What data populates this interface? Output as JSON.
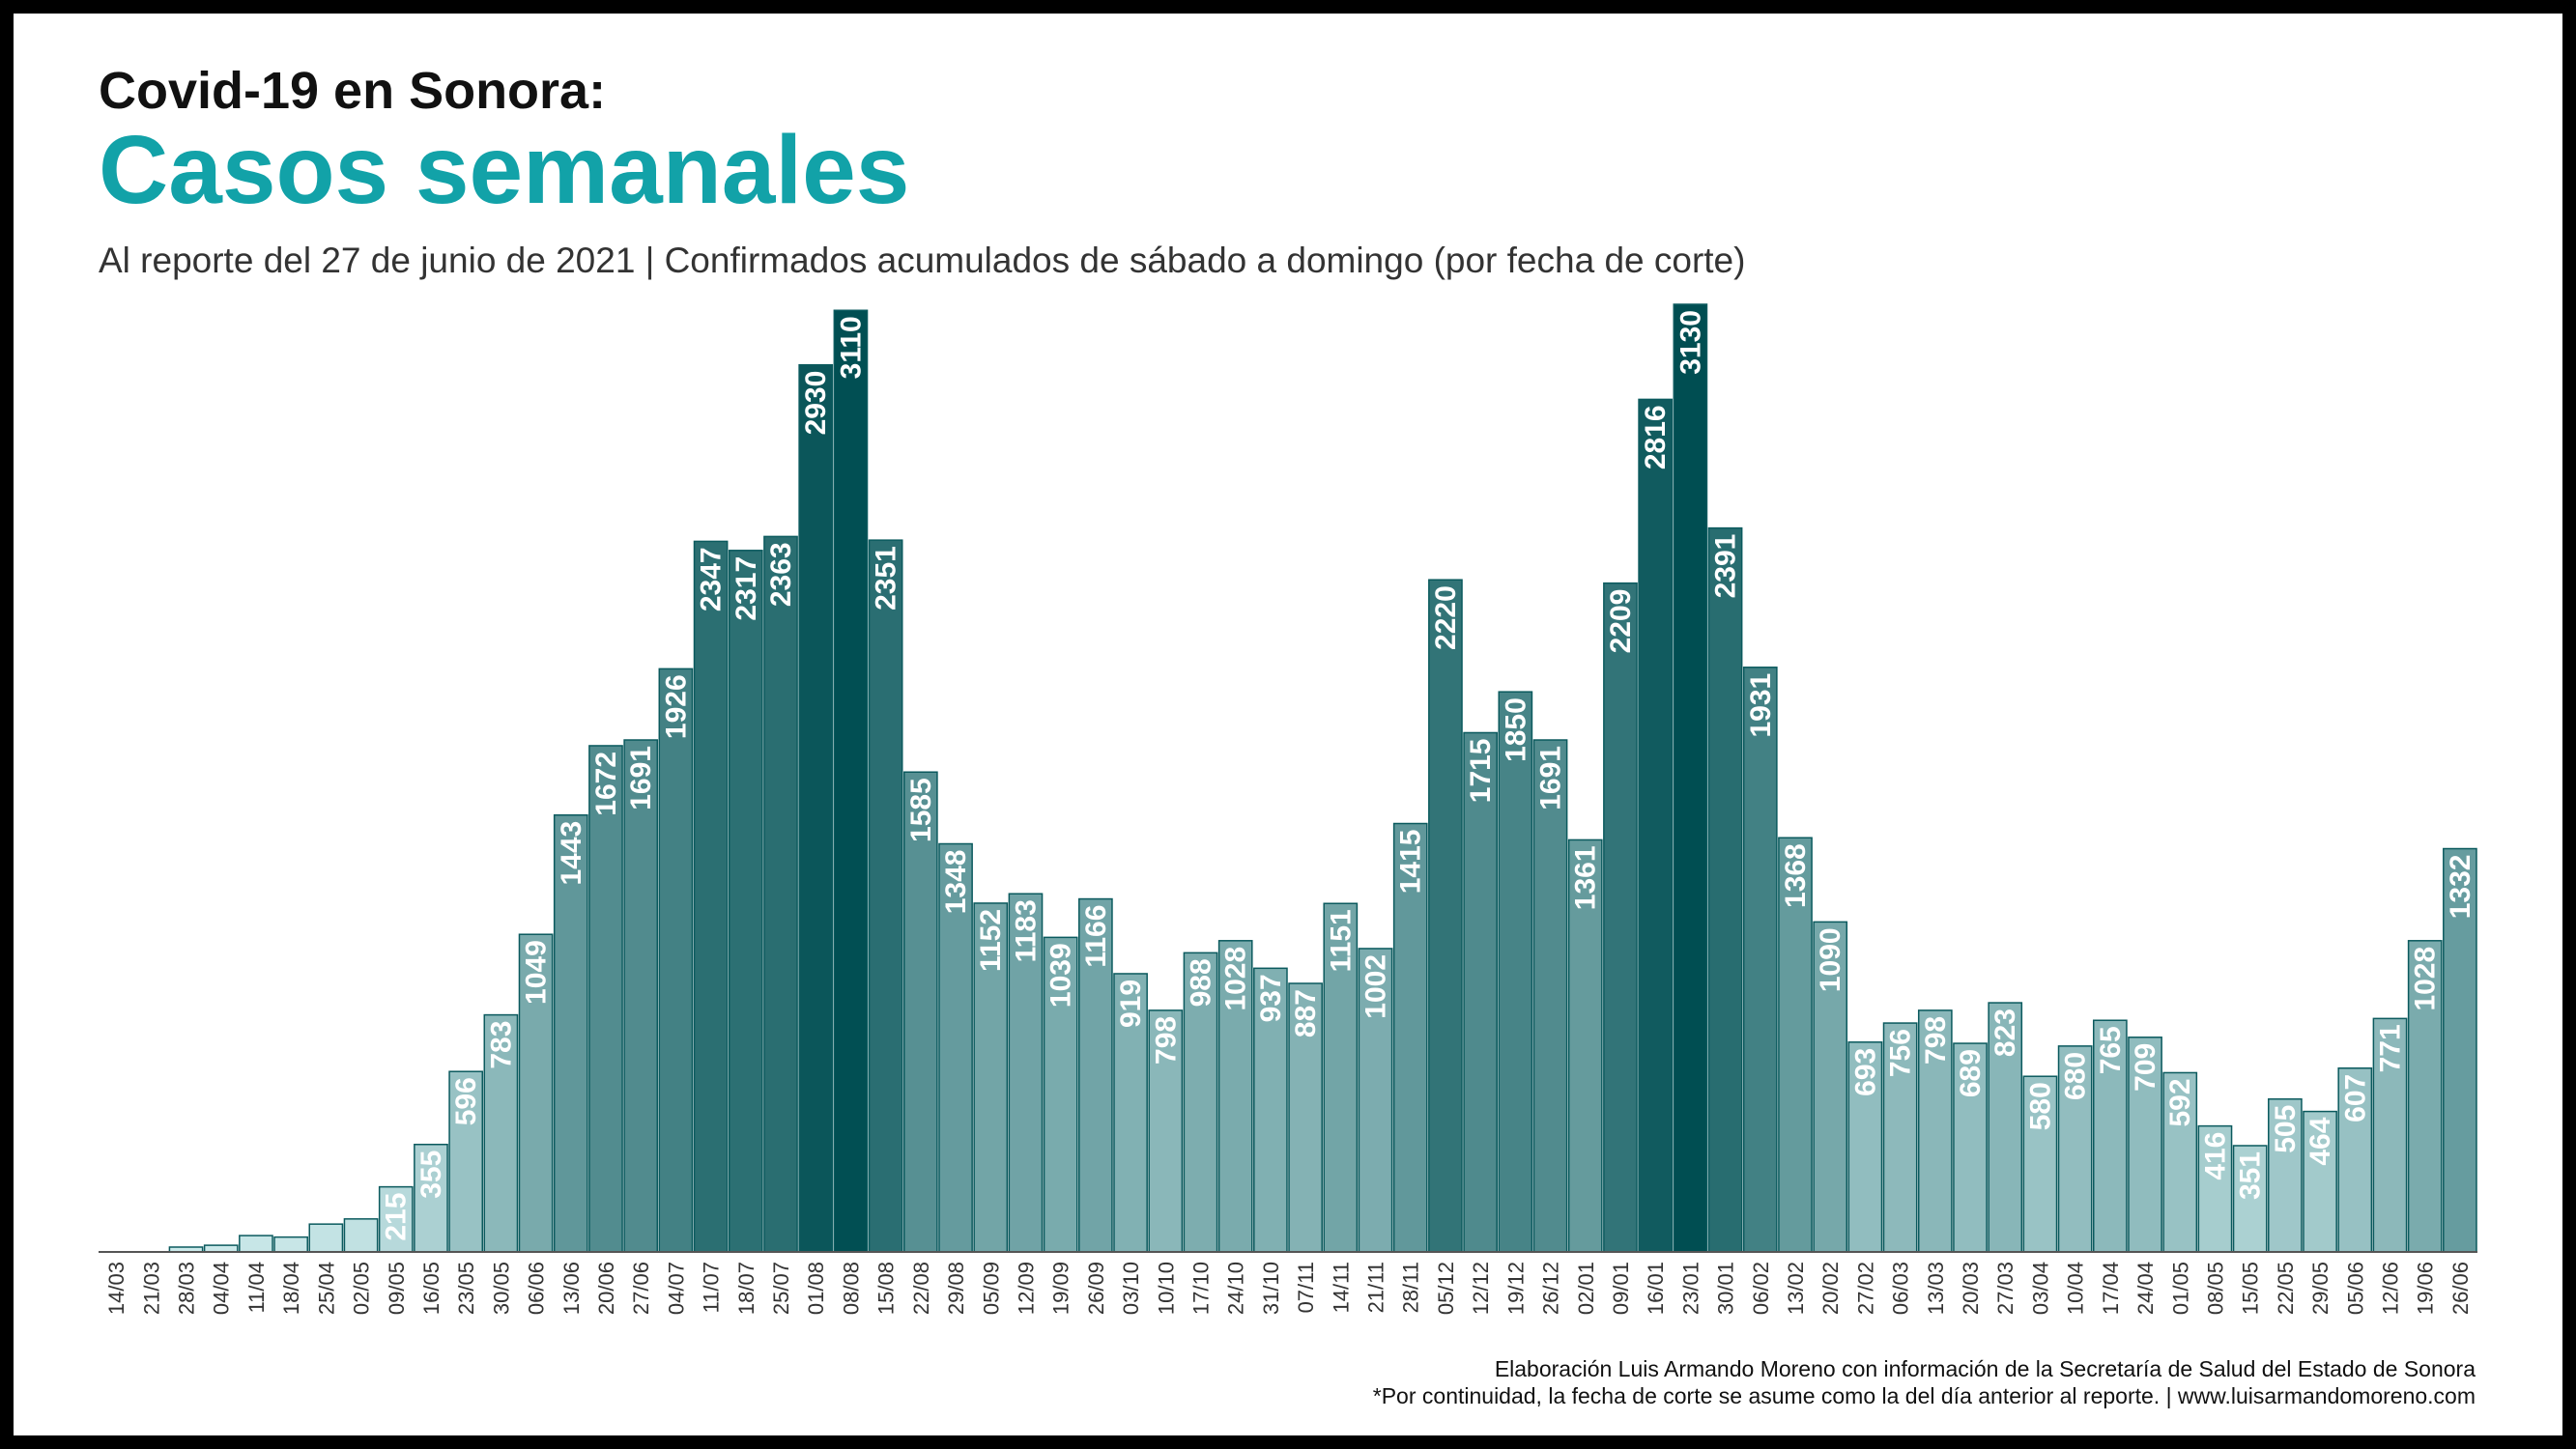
{
  "chart_data": {
    "type": "bar",
    "title": "Covid-19 en Sonora:",
    "subtitle_main": "Casos semanales",
    "subtitle": "Al reporte del 27 de junio de 2021 | Confirmados acumulados de sábado a domingo (por fecha de corte)",
    "source": "Elaboración Luis Armando Moreno con información de la Secretaría de Salud del Estado de Sonora",
    "note": "*Por continuidad, la fecha de corte se asume como la del día anterior al reporte. | www.luisarmandomoreno.com",
    "categories": [
      "14/03",
      "21/03",
      "28/03",
      "04/04",
      "11/04",
      "18/04",
      "25/04",
      "02/05",
      "09/05",
      "16/05",
      "23/05",
      "30/05",
      "06/06",
      "13/06",
      "20/06",
      "27/06",
      "04/07",
      "11/07",
      "18/07",
      "25/07",
      "01/08",
      "08/08",
      "15/08",
      "22/08",
      "29/08",
      "05/09",
      "12/09",
      "19/09",
      "26/09",
      "03/10",
      "10/10",
      "17/10",
      "24/10",
      "31/10",
      "07/11",
      "14/11",
      "21/11",
      "28/11",
      "05/12",
      "12/12",
      "19/12",
      "26/12",
      "02/01",
      "09/01",
      "16/01",
      "23/01",
      "30/01",
      "06/02",
      "13/02",
      "20/02",
      "27/02",
      "06/03",
      "13/03",
      "20/03",
      "27/03",
      "03/04",
      "10/04",
      "17/04",
      "24/04",
      "01/05",
      "08/05",
      "15/05",
      "22/05",
      "29/05",
      "05/06",
      "12/06",
      "19/06",
      "26/06"
    ],
    "values": [
      0,
      0,
      16,
      22,
      54,
      49,
      92,
      109,
      215,
      355,
      596,
      783,
      1049,
      1443,
      1672,
      1691,
      1926,
      2347,
      2317,
      2363,
      2930,
      3110,
      2351,
      1585,
      1348,
      1152,
      1183,
      1039,
      1166,
      919,
      798,
      988,
      1028,
      937,
      887,
      1151,
      1002,
      1415,
      2220,
      1715,
      1850,
      1691,
      1361,
      2209,
      2816,
      3130,
      2391,
      1931,
      1368,
      1090,
      693,
      756,
      798,
      689,
      823,
      580,
      680,
      765,
      709,
      592,
      416,
      351,
      505,
      464,
      607,
      771,
      1028,
      1332
    ],
    "colors": [
      "#cfeced",
      "#004e52"
    ],
    "ylim": [
      0,
      3130
    ]
  }
}
